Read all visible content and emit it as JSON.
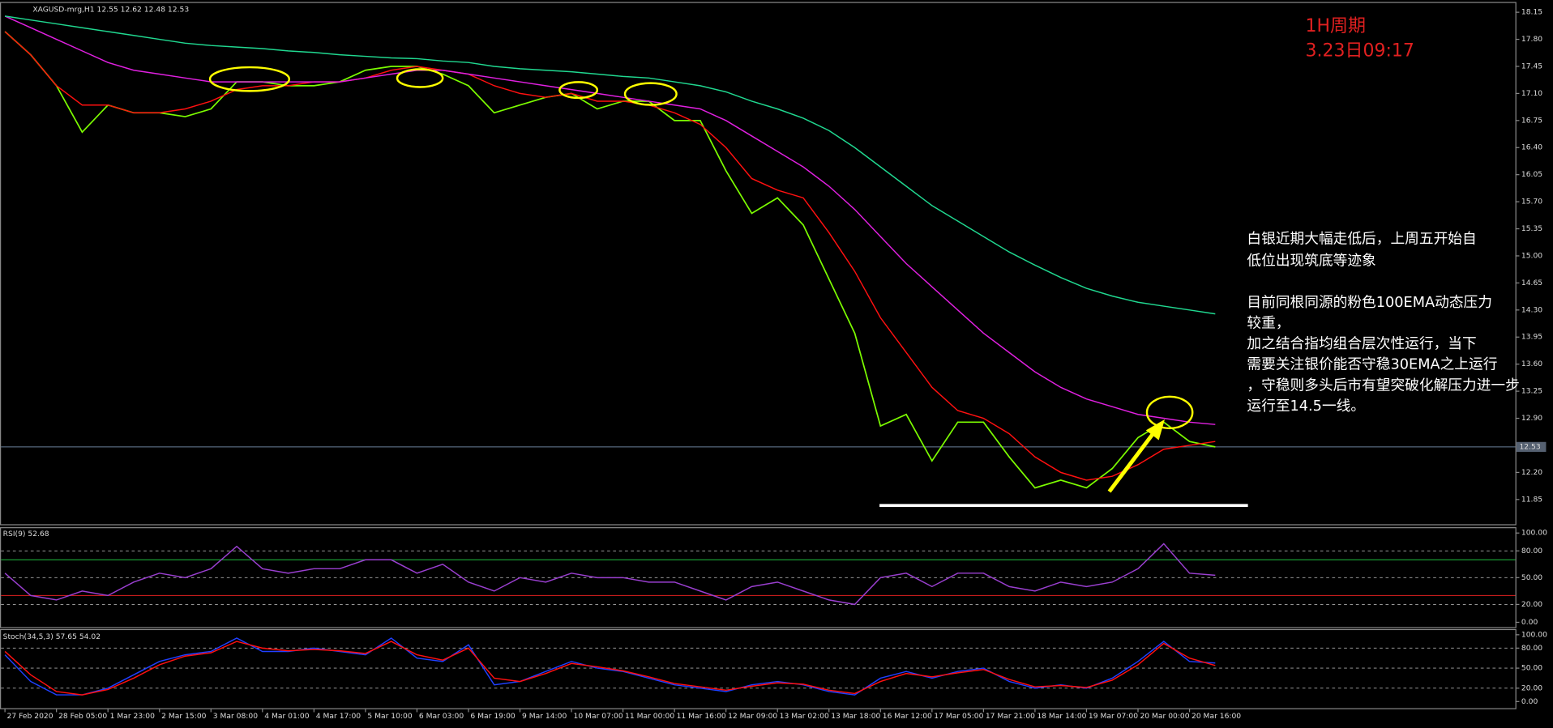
{
  "chart_data": [
    {
      "type": "line",
      "title": "XAGUSD-mrg,H1  12.55 12.62 12.48 12.53",
      "annotations": [
        "1H周期",
        "3.23日09:17",
        "白银近期大幅走低后，上周五开始自",
        "低位出现筑底等迹象",
        "目前同根同源的粉色100EMA动态压力",
        "较重，",
        "加之结合指均组合层次性运行，当下",
        "需要关注银价能否守稳30EMA之上运行",
        "，守稳则多头后市有望突破化解压力进一步",
        "运行至14.5一线。"
      ],
      "categories": [
        "27 Feb 2020",
        null,
        "28 Feb 05:00",
        null,
        "1 Mar 23:00",
        null,
        "2 Mar 15:00",
        null,
        "3 Mar 08:00",
        null,
        "4 Mar 01:00",
        null,
        "4 Mar 17:00",
        null,
        "5 Mar 10:00",
        null,
        "6 Mar 03:00",
        null,
        "6 Mar 19:00",
        null,
        "9 Mar 14:00",
        null,
        "10 Mar 07:00",
        null,
        "11 Mar 00:00",
        null,
        "11 Mar 16:00",
        null,
        "12 Mar 09:00",
        null,
        "13 Mar 02:00",
        null,
        "13 Mar 18:00",
        null,
        "16 Mar 12:00",
        null,
        "17 Mar 05:00",
        null,
        "17 Mar 21:00",
        null,
        "18 Mar 14:00",
        null,
        "19 Mar 07:00",
        null,
        "20 Mar 00:00",
        null,
        "20 Mar 16:00",
        null
      ],
      "series": [
        {
          "color": "#7cfc00",
          "values": [
            17.9,
            17.6,
            17.2,
            16.6,
            16.95,
            16.85,
            16.85,
            16.8,
            16.9,
            17.25,
            17.25,
            17.2,
            17.2,
            17.25,
            17.4,
            17.45,
            17.45,
            17.35,
            17.2,
            16.85,
            16.95,
            17.05,
            17.1,
            16.9,
            17.0,
            17.0,
            16.75,
            16.75,
            16.1,
            15.55,
            15.75,
            15.4,
            14.7,
            14.0,
            12.8,
            12.95,
            12.35,
            12.85,
            12.85,
            12.4,
            12.0,
            12.1,
            12.0,
            12.25,
            12.65,
            12.85,
            12.6,
            12.53
          ]
        },
        {
          "color": "#ff1010",
          "values": [
            17.9,
            17.6,
            17.2,
            16.95,
            16.95,
            16.85,
            16.85,
            16.9,
            17.0,
            17.15,
            17.2,
            17.2,
            17.25,
            17.25,
            17.3,
            17.4,
            17.45,
            17.4,
            17.35,
            17.2,
            17.1,
            17.05,
            17.1,
            17.0,
            17.0,
            16.95,
            16.85,
            16.7,
            16.4,
            16.0,
            15.85,
            15.75,
            15.3,
            14.8,
            14.2,
            13.75,
            13.3,
            13.0,
            12.9,
            12.7,
            12.4,
            12.2,
            12.1,
            12.15,
            12.3,
            12.5,
            12.55,
            12.6
          ]
        },
        {
          "color": "#e020e0",
          "values": [
            18.1,
            17.95,
            17.8,
            17.65,
            17.5,
            17.4,
            17.35,
            17.3,
            17.25,
            17.25,
            17.25,
            17.25,
            17.25,
            17.25,
            17.3,
            17.35,
            17.4,
            17.4,
            17.35,
            17.3,
            17.25,
            17.2,
            17.15,
            17.1,
            17.05,
            17.0,
            16.95,
            16.9,
            16.75,
            16.55,
            16.35,
            16.15,
            15.9,
            15.6,
            15.25,
            14.9,
            14.6,
            14.3,
            14.0,
            13.75,
            13.5,
            13.3,
            13.15,
            13.05,
            12.95,
            12.9,
            12.85,
            12.82
          ]
        },
        {
          "color": "#20d890",
          "values": [
            18.1,
            18.05,
            18.0,
            17.95,
            17.9,
            17.85,
            17.8,
            17.75,
            17.72,
            17.7,
            17.68,
            17.65,
            17.63,
            17.6,
            17.58,
            17.56,
            17.55,
            17.52,
            17.5,
            17.45,
            17.42,
            17.4,
            17.38,
            17.35,
            17.32,
            17.3,
            17.25,
            17.2,
            17.12,
            17.0,
            16.9,
            16.78,
            16.62,
            16.4,
            16.15,
            15.9,
            15.65,
            15.45,
            15.25,
            15.05,
            14.88,
            14.72,
            14.58,
            14.48,
            14.4,
            14.35,
            14.3,
            14.25
          ]
        }
      ],
      "current_price": 12.53,
      "ylim": [
        11.53,
        18.27
      ],
      "yticks": [
        18.15,
        {
          "value": 17.8,
          "label": "17.80"
        },
        17.45,
        {
          "value": 17.1,
          "label": "17.10"
        },
        16.75,
        {
          "value": 16.4,
          "label": "16.40"
        },
        16.05,
        {
          "value": 15.7,
          "label": "15.70"
        },
        15.35,
        {
          "value": 15.0,
          "label": "15.00"
        },
        14.65,
        {
          "value": 14.3,
          "label": "14.30"
        },
        13.95,
        {
          "value": 13.6,
          "label": "13.60"
        },
        13.25,
        {
          "value": 12.9,
          "label": "12.90"
        },
        {
          "value": 12.2,
          "label": "12.20"
        },
        11.85
      ]
    },
    {
      "type": "line",
      "title": "RSI(9) 52.68",
      "series": [
        {
          "color": "#9a3fd0",
          "values": [
            55,
            30,
            25,
            35,
            30,
            45,
            55,
            50,
            60,
            85,
            60,
            55,
            60,
            60,
            70,
            70,
            55,
            65,
            45,
            35,
            50,
            45,
            55,
            50,
            50,
            45,
            45,
            35,
            25,
            40,
            45,
            35,
            25,
            20,
            50,
            55,
            40,
            55,
            55,
            40,
            35,
            45,
            40,
            45,
            60,
            88,
            55,
            52.68
          ]
        }
      ],
      "levels": [
        {
          "value": 70,
          "color": "#20c040"
        },
        {
          "value": 30,
          "color": "#e02020"
        }
      ],
      "ylim": [
        -5.4,
        105.4
      ],
      "yticks": [
        {
          "value": 100,
          "label": "100.00"
        },
        {
          "value": 80,
          "label": "80.00"
        },
        {
          "value": 50,
          "label": "50.00"
        },
        {
          "value": 20,
          "label": "20.00"
        },
        {
          "value": 0,
          "label": "0.00"
        }
      ]
    },
    {
      "type": "line",
      "title": "Stoch(34,5,3) 57.65 54.02",
      "series": [
        {
          "color": "#2040ff",
          "values": [
            70,
            30,
            10,
            10,
            20,
            40,
            60,
            70,
            75,
            95,
            75,
            75,
            80,
            75,
            70,
            95,
            65,
            60,
            85,
            25,
            30,
            45,
            60,
            50,
            45,
            35,
            25,
            20,
            15,
            25,
            30,
            25,
            15,
            10,
            35,
            45,
            35,
            45,
            50,
            30,
            20,
            25,
            20,
            35,
            60,
            90,
            60,
            57.65
          ]
        },
        {
          "color": "#ff1010",
          "values": [
            75,
            40,
            15,
            10,
            18,
            35,
            55,
            68,
            73,
            90,
            80,
            76,
            78,
            76,
            72,
            90,
            70,
            62,
            80,
            35,
            30,
            42,
            57,
            52,
            46,
            37,
            27,
            22,
            17,
            23,
            28,
            26,
            17,
            12,
            30,
            42,
            37,
            43,
            48,
            33,
            22,
            24,
            21,
            32,
            55,
            87,
            65,
            54.02
          ]
        }
      ],
      "ylim": [
        -10,
        107
      ],
      "yticks": [
        {
          "value": 100,
          "label": "100.00"
        },
        {
          "value": 80,
          "label": "80.00"
        },
        {
          "value": 50,
          "label": "50.00"
        },
        {
          "value": 20,
          "label": "20.00"
        },
        {
          "value": 0,
          "label": "0.00"
        }
      ]
    }
  ]
}
